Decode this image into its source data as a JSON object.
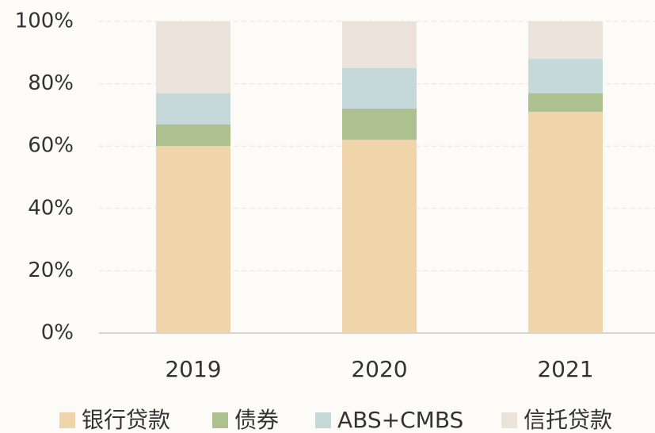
{
  "chart_data": {
    "type": "stacked_bar",
    "categories": [
      "2019",
      "2020",
      "2021"
    ],
    "series": [
      {
        "name": "银行贷款",
        "color": "#f0d5ab",
        "values": [
          60,
          62,
          71
        ]
      },
      {
        "name": "债券",
        "color": "#adc08f",
        "values": [
          7,
          10,
          6
        ]
      },
      {
        "name": "ABS+CMBS",
        "color": "#c5d9da",
        "values": [
          10,
          13,
          11
        ]
      },
      {
        "name": "信托贷款",
        "color": "#ebe3da",
        "values": [
          23,
          15,
          12
        ]
      }
    ],
    "ylim": [
      0,
      100
    ],
    "yticks": [
      {
        "value": 0,
        "label": "0%"
      },
      {
        "value": 20,
        "label": "20%"
      },
      {
        "value": 40,
        "label": "40%"
      },
      {
        "value": 60,
        "label": "60%"
      },
      {
        "value": 80,
        "label": "80%"
      },
      {
        "value": 100,
        "label": "100%"
      }
    ],
    "grid": true,
    "legend": "bottom"
  }
}
